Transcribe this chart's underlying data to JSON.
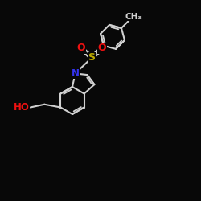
{
  "bg_color": "#080808",
  "bond_color": "#d0d0d0",
  "bond_width": 1.5,
  "atom_colors": {
    "O": "#ee1111",
    "N": "#3333ee",
    "S": "#bbaa00",
    "C": "#d0d0d0"
  },
  "canvas_xlim": [
    0,
    10
  ],
  "canvas_ylim": [
    0,
    10
  ],
  "figsize": [
    2.5,
    2.5
  ],
  "dpi": 100
}
